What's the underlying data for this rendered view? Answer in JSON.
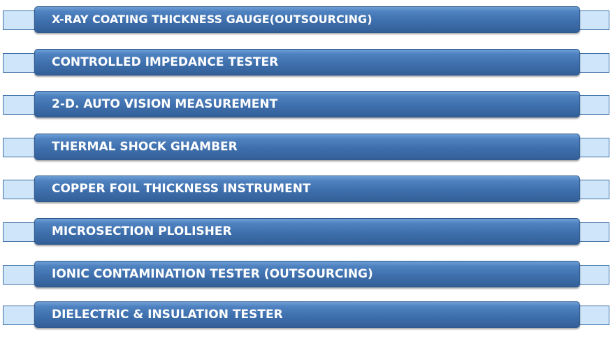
{
  "items": [
    {
      "label": "X-RAY COATING THICKNESS GAUGE(OUTSOURCING)"
    },
    {
      "label": "CONTROLLED IMPEDANCE TESTER"
    },
    {
      "label": "2-D. AUTO VISION MEASUREMENT"
    },
    {
      "label": "THERMAL SHOCK GHAMBER"
    },
    {
      "label": "COPPER FOIL THICKNESS INSTRUMENT"
    },
    {
      "label": "MICROSECTION PLOLISHER"
    },
    {
      "label": "IONIC CONTAMINATION TESTER (OUTSOURCING)"
    },
    {
      "label": "DIELECTRIC & INSULATION TESTER"
    }
  ],
  "colors": {
    "pill": "#3f70ad",
    "rail": "#cfe6fa",
    "text": "#ffffff"
  }
}
